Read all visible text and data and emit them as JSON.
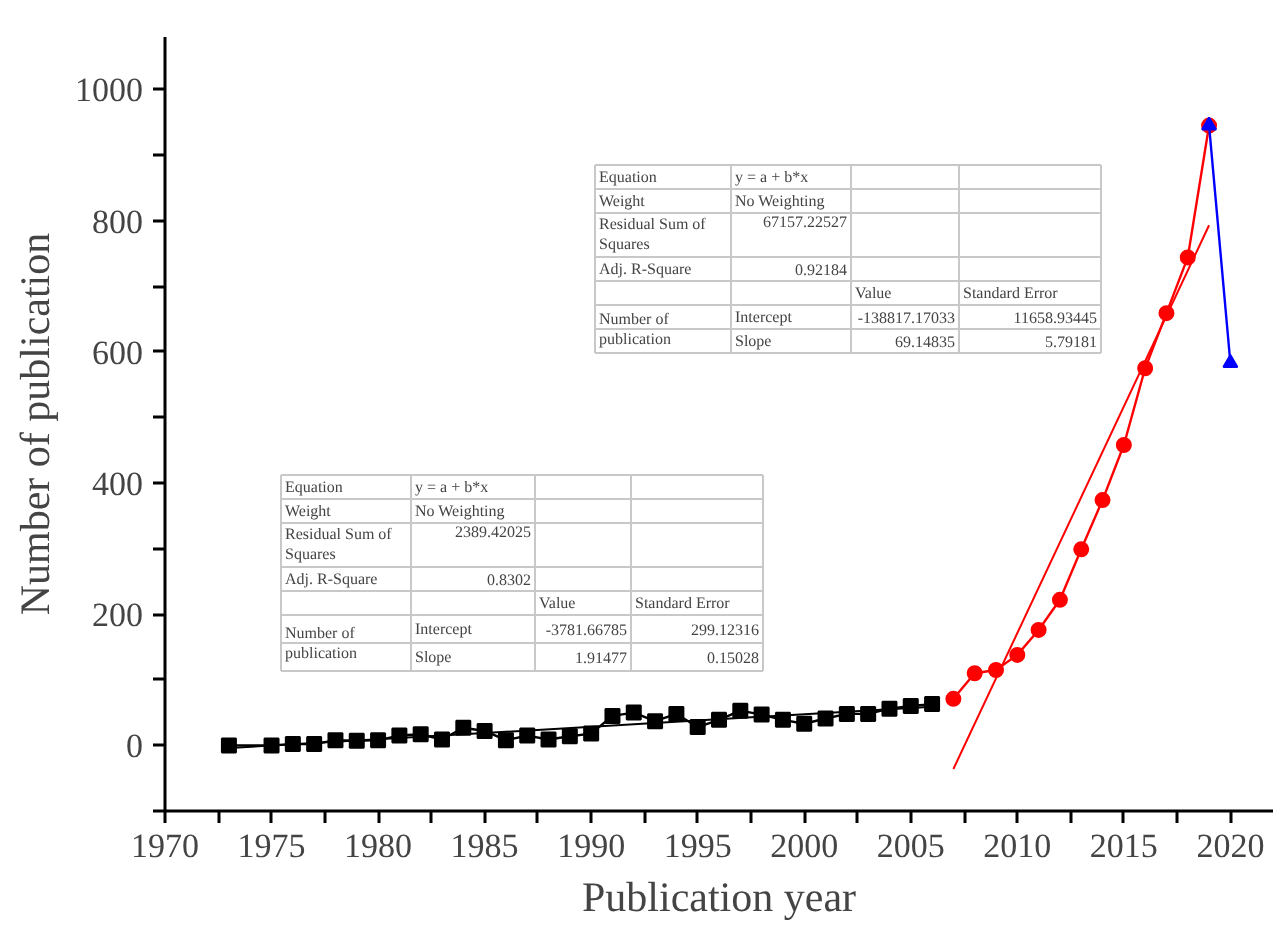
{
  "chart_data": {
    "type": "line",
    "xlabel": "Publication year",
    "ylabel": "Number of publication",
    "xlim": [
      1970,
      2022
    ],
    "ylim": [
      -100,
      1080
    ],
    "xticks": [
      1970,
      {
        "value": 1972.5,
        "label": null
      },
      1975,
      {
        "value": 1977.5,
        "label": null
      },
      1980,
      {
        "value": 1982.5,
        "label": null
      },
      1985,
      {
        "value": 1987.5,
        "label": null
      },
      1990,
      {
        "value": 1992.5,
        "label": null
      },
      1995,
      {
        "value": 1997.5,
        "label": null
      },
      2000,
      {
        "value": 2002.5,
        "label": null
      },
      2005,
      {
        "value": 2007.5,
        "label": null
      },
      2010,
      {
        "value": 2012.5,
        "label": null
      },
      2015,
      {
        "value": 2017.5,
        "label": null
      },
      2020
    ],
    "yticks": [
      {
        "value": -100,
        "label": null
      },
      0,
      {
        "value": 100,
        "label": null
      },
      200,
      {
        "value": 300,
        "label": null
      },
      400,
      {
        "value": 500,
        "label": null
      },
      600,
      {
        "value": 700,
        "label": null
      },
      800,
      {
        "value": 900,
        "label": null
      },
      1000
    ],
    "grid": false,
    "series": [
      {
        "color": "#000000",
        "marker": "square",
        "x": [
          1973,
          1975,
          1976,
          1977,
          1978,
          1979,
          1980,
          1981,
          1982,
          1983,
          1984,
          1985,
          1986,
          1987,
          1988,
          1989,
          1990,
          1991,
          1992,
          1993,
          1994,
          1995,
          1996,
          1997,
          1998,
          1999,
          2000,
          2001,
          2002,
          2003,
          2004,
          2005,
          2006
        ],
        "values": [
          0,
          0,
          2,
          2,
          8,
          7,
          8,
          15,
          17,
          9,
          27,
          22,
          8,
          15,
          9,
          14,
          18,
          45,
          50,
          37,
          48,
          28,
          39,
          53,
          47,
          39,
          33,
          41,
          48,
          48,
          56,
          60,
          63
        ]
      },
      {
        "color": "#ff0000",
        "marker": "circle",
        "x": [
          2007,
          2008,
          2009,
          2010,
          2011,
          2012,
          2013,
          2014,
          2015,
          2016,
          2017,
          2018,
          2019
        ],
        "values": [
          71,
          110,
          115,
          138,
          176,
          222,
          299,
          374,
          458,
          575,
          659,
          744,
          945
        ]
      },
      {
        "color": "#0000ff",
        "marker": "triangle",
        "x": [
          2019,
          2020
        ],
        "values": [
          945,
          583
        ]
      },
      {
        "color": "#000000",
        "marker": "none",
        "x": [
          1973,
          2006
        ],
        "values": [
          -4,
          59
        ]
      },
      {
        "color": "#ff0000",
        "marker": "none",
        "x": [
          2007,
          2019
        ],
        "values": [
          -36,
          793
        ]
      }
    ],
    "annotations": [
      "Equation",
      "y = a + b*x",
      "Weight",
      "No Weighting",
      "Residual Sum of Squares",
      "67157.22527",
      "Adj. R-Square",
      "0.92184",
      "Value",
      "Standard Error",
      "Number of publication",
      "Intercept",
      "-138817.17033",
      "11658.93445",
      "Slope",
      "69.14835",
      "5.79181",
      "Equation",
      "y = a + b*x",
      "Weight",
      "No Weighting",
      "Residual Sum of Squares",
      "2389.42025",
      "Adj. R-Square",
      "0.8302",
      "Value",
      "Standard Error",
      "Number of publication",
      "Intercept",
      "-3781.66785",
      "299.12316",
      "Slope",
      "1.91477",
      "0.15028"
    ]
  }
}
